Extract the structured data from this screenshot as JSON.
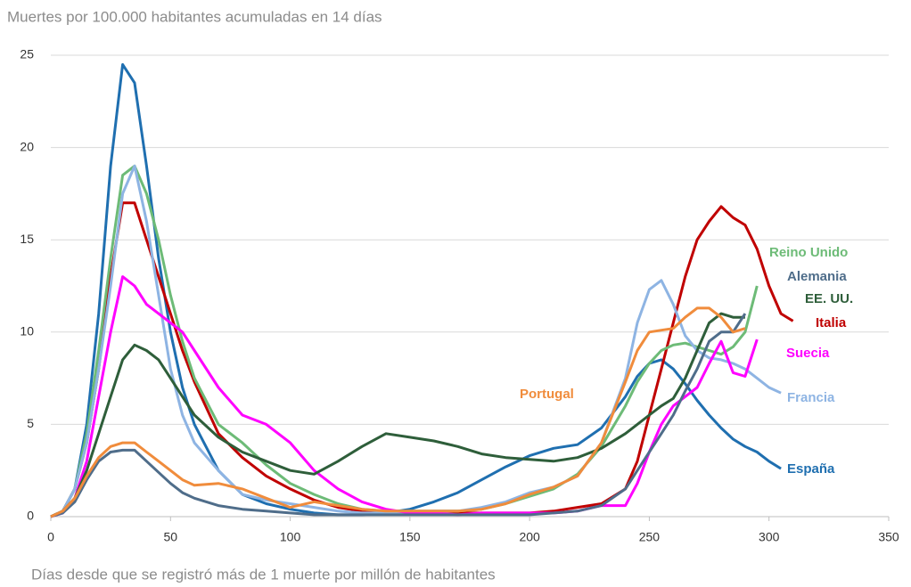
{
  "chart_data": {
    "type": "line",
    "title": "Muertes por 100.000 habitantes acumuladas en 14 días",
    "x_label": "Días desde que se registró más de 1 muerte por millón de habitantes",
    "x": [
      0,
      5,
      10,
      15,
      20,
      25,
      30,
      35,
      40,
      45,
      50,
      55,
      60,
      70,
      80,
      90,
      100,
      110,
      120,
      130,
      140,
      150,
      160,
      170,
      180,
      190,
      200,
      210,
      220,
      230,
      240,
      245,
      250,
      255,
      260,
      265,
      270,
      275,
      280,
      285,
      290,
      295,
      300,
      305,
      310
    ],
    "series": [
      {
        "name": "España",
        "color": "#1f6fb0",
        "values": [
          0,
          0.3,
          1.5,
          5,
          11,
          19,
          24.5,
          23.5,
          19,
          14,
          10,
          7,
          5,
          2.5,
          1.2,
          0.7,
          0.4,
          0.2,
          0.1,
          0.1,
          0.2,
          0.4,
          0.8,
          1.3,
          2,
          2.7,
          3.3,
          3.7,
          3.9,
          4.8,
          6.5,
          7.6,
          8.3,
          8.5,
          8,
          7.2,
          6.3,
          5.5,
          4.8,
          4.2,
          3.8,
          3.5,
          3.0,
          2.6,
          null
        ]
      },
      {
        "name": "Italia",
        "color": "#c00000",
        "values": [
          0,
          0.3,
          1.5,
          4,
          8,
          13,
          17,
          17,
          15,
          13,
          11,
          9,
          7.3,
          4.5,
          3.2,
          2.2,
          1.5,
          0.9,
          0.5,
          0.3,
          0.2,
          0.2,
          0.2,
          0.2,
          0.2,
          0.2,
          0.2,
          0.3,
          0.5,
          0.7,
          1.5,
          3,
          5.5,
          8,
          10.5,
          13,
          15,
          16,
          16.8,
          16.2,
          15.8,
          14.5,
          12.5,
          11,
          10.6
        ]
      },
      {
        "name": "Reino Unido",
        "color": "#6dbb77",
        "values": [
          0,
          0.3,
          1.5,
          4.5,
          9,
          14,
          18.5,
          19,
          17.5,
          15,
          12,
          9.5,
          7.5,
          5,
          4,
          2.8,
          1.8,
          1.2,
          0.7,
          0.4,
          0.3,
          0.3,
          0.3,
          0.3,
          0.4,
          0.7,
          1.1,
          1.5,
          2.3,
          3.8,
          6,
          7.3,
          8.3,
          9,
          9.3,
          9.4,
          9.2,
          9,
          8.8,
          9.2,
          10,
          12.5,
          null,
          null,
          null
        ]
      },
      {
        "name": "Francia",
        "color": "#8eb4e3",
        "values": [
          0,
          0.3,
          1.5,
          4,
          8,
          12.5,
          17.5,
          19,
          16,
          12,
          8,
          5.5,
          4,
          2.5,
          1.2,
          0.9,
          0.7,
          0.5,
          0.3,
          0.2,
          0.2,
          0.2,
          0.3,
          0.3,
          0.5,
          0.8,
          1.3,
          1.6,
          2.2,
          4,
          7.5,
          10.5,
          12.3,
          12.8,
          11.5,
          9.8,
          9,
          8.6,
          8.5,
          8.3,
          8,
          7.5,
          7,
          6.7,
          null
        ]
      },
      {
        "name": "Suecia",
        "color": "#ff00ff",
        "values": [
          0,
          0.2,
          1,
          3,
          6.5,
          10,
          13,
          12.5,
          11.5,
          11,
          10.5,
          10,
          9,
          7,
          5.5,
          5,
          4,
          2.5,
          1.5,
          0.8,
          0.4,
          0.2,
          0.2,
          0.1,
          0.2,
          0.2,
          0.2,
          0.2,
          0.3,
          0.6,
          0.6,
          1.8,
          3.5,
          5,
          6,
          6.5,
          7,
          8.3,
          9.5,
          7.8,
          7.6,
          9.6,
          null,
          null,
          null
        ]
      },
      {
        "name": "EE. UU.",
        "color": "#2e5e3a",
        "values": [
          0,
          0.3,
          1,
          2.5,
          4.5,
          6.5,
          8.5,
          9.3,
          9,
          8.5,
          7.5,
          6.5,
          5.5,
          4.3,
          3.5,
          3,
          2.5,
          2.3,
          3,
          3.8,
          4.5,
          4.3,
          4.1,
          3.8,
          3.4,
          3.2,
          3.1,
          3.0,
          3.2,
          3.7,
          4.5,
          5,
          5.5,
          6,
          6.4,
          7.5,
          9,
          10.5,
          11,
          10.8,
          10.8,
          null,
          null,
          null,
          null
        ]
      },
      {
        "name": "Alemania",
        "color": "#4f6d8a",
        "values": [
          0,
          0.2,
          0.8,
          2,
          3,
          3.5,
          3.6,
          3.6,
          3,
          2.4,
          1.8,
          1.3,
          1,
          0.6,
          0.4,
          0.3,
          0.2,
          0.1,
          0.1,
          0.1,
          0.1,
          0.1,
          0.1,
          0.1,
          0.1,
          0.1,
          0.1,
          0.2,
          0.3,
          0.6,
          1.5,
          2.5,
          3.5,
          4.5,
          5.5,
          6.8,
          8,
          9.5,
          10,
          10,
          11,
          null,
          null,
          null,
          null
        ]
      },
      {
        "name": "Portugal",
        "color": "#f08c3c",
        "values": [
          0,
          0.3,
          1,
          2.2,
          3.2,
          3.8,
          4,
          4,
          3.5,
          3,
          2.5,
          2,
          1.7,
          1.8,
          1.5,
          1,
          0.5,
          0.8,
          0.6,
          0.4,
          0.3,
          0.3,
          0.3,
          0.3,
          0.4,
          0.7,
          1.2,
          1.6,
          2.2,
          4,
          7.3,
          9,
          10,
          10.1,
          10.2,
          10.8,
          11.3,
          11.3,
          10.8,
          10,
          10.2,
          null,
          null,
          null,
          null
        ]
      }
    ],
    "xlim": [
      0,
      350
    ],
    "xticks": [
      0,
      50,
      100,
      150,
      200,
      250,
      300,
      350
    ],
    "ylim": [
      0,
      25
    ],
    "yticks": [
      0,
      5,
      10,
      15,
      20,
      25
    ],
    "grid": true
  }
}
